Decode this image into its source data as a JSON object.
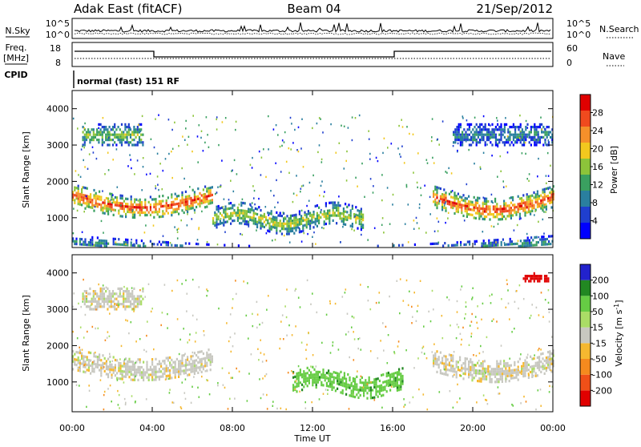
{
  "header": {
    "station": "Adak East (fitACF)",
    "beam": "Beam 04",
    "date": "21/Sep/2012"
  },
  "noise_panel": {
    "left_label": "N.Sky",
    "right_label": "N.Search",
    "ticks": [
      "10^5",
      "10^0"
    ]
  },
  "freq_panel": {
    "left_label_1": "Freq.",
    "left_label_2": "[MHz]",
    "left_ticks": [
      "18",
      "8"
    ],
    "right_label": "Nave",
    "right_ticks": [
      "60",
      "0"
    ]
  },
  "cpid": {
    "label": "CPID",
    "mode": "normal (fast) 151 RF"
  },
  "time_axis": {
    "label": "Time UT",
    "ticks": [
      "00:00",
      "04:00",
      "08:00",
      "12:00",
      "16:00",
      "20:00",
      "00:00"
    ]
  },
  "colors": {
    "power": [
      "#0000ff",
      "#1f3fcf",
      "#2a7f9f",
      "#3aa060",
      "#8cc43a",
      "#f2c81e",
      "#f5902a",
      "#f04a1e",
      "#e00000"
    ],
    "velocity": [
      "#2222cc",
      "#228822",
      "#66cc44",
      "#aadd66",
      "#c8c8c0",
      "#f5b830",
      "#f58a1e",
      "#f05018",
      "#e00000"
    ]
  },
  "chart_data": [
    {
      "type": "heatmap",
      "name": "power",
      "ylabel": "Slant Range [km]",
      "xlabel": "",
      "ylim": [
        180,
        4500
      ],
      "xlim_hours": [
        0,
        24
      ],
      "y_ticks": [
        1000,
        2000,
        3000,
        4000
      ],
      "colorbar": {
        "label": "Power [dB]",
        "ticks": [
          4,
          8,
          12,
          16,
          20,
          24,
          28
        ],
        "range": [
          0,
          32
        ]
      },
      "features": [
        {
          "band": "main F-region echoes",
          "t_start": 0,
          "t_end": 7,
          "range_center_km": 1650,
          "power_db": 28
        },
        {
          "band": "main F-region echoes",
          "t_start": 18,
          "t_end": 24,
          "range_center_km": 1600,
          "power_db": 28
        },
        {
          "band": "mid-day echoes",
          "t_start": 7,
          "t_end": 14.5,
          "range_center_km": 1000,
          "power_db": 18
        },
        {
          "band": "far range patches",
          "t_start": 0.5,
          "t_end": 3.5,
          "range_center_km": 3300,
          "power_db": 16
        },
        {
          "band": "far range patches",
          "t_start": 19,
          "t_end": 24,
          "range_center_km": 3300,
          "power_db": 10
        },
        {
          "band": "near range ground scatter",
          "t_start": 0,
          "t_end": 24,
          "range_center_km": 350,
          "power_db": 12
        }
      ]
    },
    {
      "type": "heatmap",
      "name": "velocity",
      "ylabel": "Slant Range [km]",
      "xlabel": "Time UT",
      "ylim": [
        180,
        4500
      ],
      "xlim_hours": [
        0,
        24
      ],
      "y_ticks": [
        1000,
        2000,
        3000,
        4000
      ],
      "colorbar": {
        "label": "Velocity [m s^-1]",
        "ticks": [
          200,
          100,
          50,
          15,
          -15,
          -50,
          -100,
          -200
        ],
        "range": [
          -250,
          250
        ]
      },
      "features": [
        {
          "band": "ground scatter",
          "t_start": 0,
          "t_end": 7,
          "range_center_km": 1650,
          "velocity": 0
        },
        {
          "band": "ground scatter",
          "t_start": 18,
          "t_end": 24,
          "range_center_km": 1600,
          "velocity": 0
        },
        {
          "band": "ionospheric echoes",
          "t_start": 11,
          "t_end": 16.5,
          "range_center_km": 1000,
          "velocity": 60
        },
        {
          "band": "far range patches",
          "t_start": 0.5,
          "t_end": 3.5,
          "range_center_km": 3300,
          "velocity": 0
        },
        {
          "band": "high velocity patch",
          "t_start": 22.5,
          "t_end": 23.8,
          "range_center_km": 3900,
          "velocity": -180
        }
      ]
    }
  ]
}
